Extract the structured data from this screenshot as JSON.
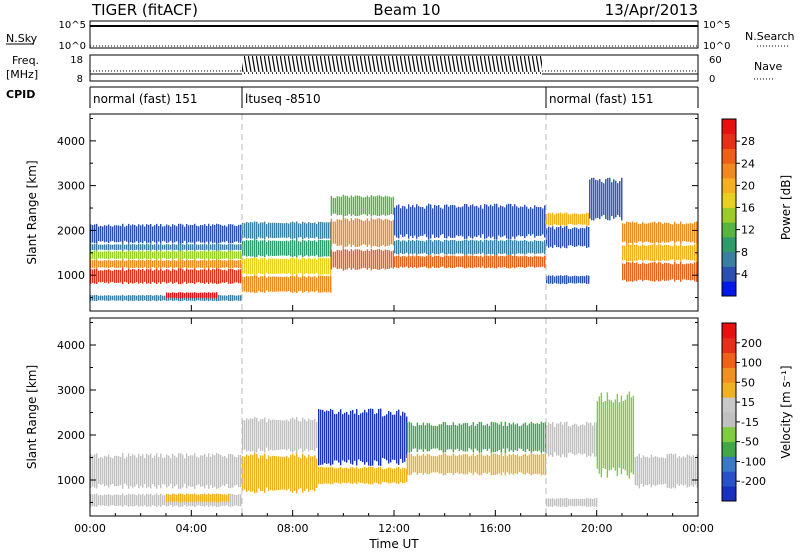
{
  "header": {
    "station": "TIGER (fitACF)",
    "beam": "Beam 10",
    "date": "13/Apr/2013"
  },
  "strips": {
    "nsky_label": "N.Sky",
    "nsearch_label": "N.Search",
    "nsky_ticks": [
      "10^5",
      "10^0"
    ],
    "freq_label_1": "Freq.",
    "freq_label_2": "[MHz]",
    "freq_ticks": [
      "18",
      "8"
    ],
    "nave_label": "Nave",
    "nave_ticks": [
      "60",
      "0"
    ],
    "cpid_label": "CPID",
    "cpid_segments": [
      {
        "label": "normal (fast) 151",
        "start": 0,
        "end": 6
      },
      {
        "label": "ltuseq -8510",
        "start": 6,
        "end": 18
      },
      {
        "label": "normal (fast) 151",
        "start": 18,
        "end": 24
      }
    ]
  },
  "chart_data": [
    {
      "type": "heatmap",
      "parameter": "Power",
      "ylabel": "Slant Range [km]",
      "xlabel": "",
      "ylim": [
        200,
        4600
      ],
      "xlim": [
        0,
        24
      ],
      "yticks": [
        1000,
        2000,
        3000,
        4000
      ],
      "colorbar": {
        "label": "Power [dB]",
        "ticks": [
          "4",
          "8",
          "12",
          "16",
          "20",
          "24",
          "28"
        ],
        "colors": [
          "#0018e8",
          "#2a4fb0",
          "#3a7fa0",
          "#2f9a6a",
          "#55b540",
          "#9ccc2a",
          "#e8d020",
          "#f5b020",
          "#f08a20",
          "#ee6018",
          "#e83018",
          "#e81010"
        ]
      },
      "regions": [
        {
          "t0": 0.0,
          "t1": 6.0,
          "r0": 800,
          "r1": 1150,
          "value": "#e83018"
        },
        {
          "t0": 0.0,
          "t1": 6.0,
          "r0": 1150,
          "r1": 1350,
          "value": "#f08a20"
        },
        {
          "t0": 0.0,
          "t1": 6.0,
          "r0": 1350,
          "r1": 1550,
          "value": "#9ccc2a"
        },
        {
          "t0": 0.0,
          "t1": 6.0,
          "r0": 1550,
          "r1": 1700,
          "value": "#3a7fa0"
        },
        {
          "t0": 0.0,
          "t1": 6.0,
          "r0": 1700,
          "r1": 2150,
          "value": "#2a4fb0"
        },
        {
          "t0": 0.0,
          "t1": 6.0,
          "r0": 420,
          "r1": 560,
          "value": "#3a7fa0"
        },
        {
          "t0": 3.0,
          "t1": 5.0,
          "r0": 480,
          "r1": 620,
          "value": "#e81010"
        },
        {
          "t0": 6.0,
          "t1": 9.5,
          "r0": 1000,
          "r1": 1400,
          "value": "#e8d020"
        },
        {
          "t0": 6.0,
          "t1": 9.5,
          "r0": 1400,
          "r1": 1800,
          "value": "#2f9a6a"
        },
        {
          "t0": 6.0,
          "t1": 9.5,
          "r0": 1800,
          "r1": 2200,
          "value": "#3a7fa0"
        },
        {
          "t0": 6.0,
          "t1": 9.5,
          "r0": 600,
          "r1": 1000,
          "value": "#f08a20"
        },
        {
          "t0": 9.5,
          "t1": 12.0,
          "r0": 1100,
          "r1": 1600,
          "value": "#ee6018"
        },
        {
          "t0": 9.5,
          "t1": 12.0,
          "r0": 1600,
          "r1": 2300,
          "value": "#f08a20"
        },
        {
          "t0": 9.5,
          "t1": 12.0,
          "r0": 2300,
          "r1": 2800,
          "value": "#55b540"
        },
        {
          "t0": 12.0,
          "t1": 18.0,
          "r0": 1150,
          "r1": 1450,
          "value": "#ee6018"
        },
        {
          "t0": 12.0,
          "t1": 18.0,
          "r0": 1450,
          "r1": 1800,
          "value": "#3a7fa0"
        },
        {
          "t0": 12.0,
          "t1": 18.0,
          "r0": 1800,
          "r1": 2600,
          "value": "#2a4fb0"
        },
        {
          "t0": 18.0,
          "t1": 19.7,
          "r0": 1600,
          "r1": 2100,
          "value": "#2a4fb0"
        },
        {
          "t0": 18.0,
          "t1": 19.7,
          "r0": 2100,
          "r1": 2400,
          "value": "#f5b020"
        },
        {
          "t0": 18.0,
          "t1": 19.7,
          "r0": 800,
          "r1": 1000,
          "value": "#2a4fb0"
        },
        {
          "t0": 19.7,
          "t1": 21.0,
          "r0": 2200,
          "r1": 3200,
          "value": "#2a4fb0"
        },
        {
          "t0": 21.0,
          "t1": 24.0,
          "r0": 850,
          "r1": 1300,
          "value": "#ee6018"
        },
        {
          "t0": 21.0,
          "t1": 24.0,
          "r0": 1300,
          "r1": 1700,
          "value": "#f5b020"
        },
        {
          "t0": 21.0,
          "t1": 24.0,
          "r0": 1700,
          "r1": 2200,
          "value": "#f08a20"
        }
      ]
    },
    {
      "type": "heatmap",
      "parameter": "Velocity",
      "ylabel": "Slant Range [km]",
      "xlabel": "Time UT",
      "ylim": [
        200,
        4600
      ],
      "xlim": [
        0,
        24
      ],
      "yticks": [
        1000,
        2000,
        3000,
        4000
      ],
      "xticks": [
        "00:00",
        "04:00",
        "08:00",
        "12:00",
        "16:00",
        "20:00",
        "00:00"
      ],
      "colorbar": {
        "label": "Velocity [m s⁻¹]",
        "ticks": [
          "200",
          "100",
          "50",
          "15",
          "-15",
          "-50",
          "-100",
          "-200"
        ],
        "colors": [
          "#1830c0",
          "#2a50c8",
          "#3a78c8",
          "#40a848",
          "#80cc40",
          "#c0c0c0",
          "#c8c8c8",
          "#f0b020",
          "#f09020",
          "#f06018",
          "#e83018",
          "#e81010"
        ]
      },
      "regions": [
        {
          "t0": 0.0,
          "t1": 6.0,
          "r0": 800,
          "r1": 1600,
          "value": "#c0c0c0"
        },
        {
          "t0": 0.0,
          "t1": 6.0,
          "r0": 400,
          "r1": 700,
          "value": "#c0c0c0"
        },
        {
          "t0": 3.0,
          "t1": 5.5,
          "r0": 500,
          "r1": 700,
          "value": "#f0b020"
        },
        {
          "t0": 6.0,
          "t1": 9.0,
          "r0": 700,
          "r1": 1600,
          "value": "#f0b020"
        },
        {
          "t0": 6.0,
          "t1": 9.0,
          "r0": 1600,
          "r1": 2400,
          "value": "#c0c0c0"
        },
        {
          "t0": 9.0,
          "t1": 12.5,
          "r0": 1300,
          "r1": 2600,
          "value": "#1830c0"
        },
        {
          "t0": 9.0,
          "t1": 12.5,
          "r0": 900,
          "r1": 1300,
          "value": "#f0b020"
        },
        {
          "t0": 12.5,
          "t1": 18.0,
          "r0": 1100,
          "r1": 1600,
          "value": "#f0b020"
        },
        {
          "t0": 12.5,
          "t1": 18.0,
          "r0": 1600,
          "r1": 2300,
          "value": "#40a848"
        },
        {
          "t0": 18.0,
          "t1": 20.0,
          "r0": 1500,
          "r1": 2300,
          "value": "#c0c0c0"
        },
        {
          "t0": 20.0,
          "t1": 21.5,
          "r0": 1000,
          "r1": 3000,
          "value": "#80cc40"
        },
        {
          "t0": 21.5,
          "t1": 24.0,
          "r0": 800,
          "r1": 1600,
          "value": "#c0c0c0"
        },
        {
          "t0": 18.0,
          "t1": 20.0,
          "r0": 400,
          "r1": 600,
          "value": "#c0c0c0"
        }
      ]
    }
  ]
}
